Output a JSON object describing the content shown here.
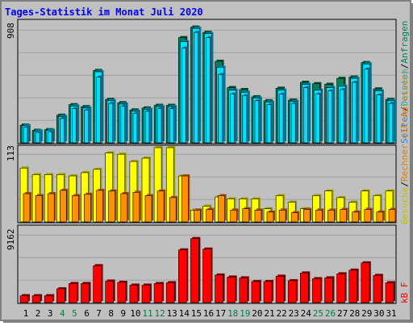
{
  "title": "Tages-Statistik im Monat Juli 2020",
  "colors": {
    "background": "#c0c0c0",
    "title": "#0000ff",
    "anfragen": "#00805a",
    "dateien": "#00e0ff",
    "seiten": "#3a7fd0",
    "besuche": "#ffff00",
    "rechner": "#ff9000",
    "kb": "#ff0000",
    "weekend_label": "#008040",
    "weekday_label": "#000000"
  },
  "legend_top": {
    "anfragen": "Anfragen",
    "sep1": "/",
    "dateien": "Dateien",
    "sep2": "/",
    "seiten": "Seiten"
  },
  "legend_mid": {
    "rechner": "Rechner (IP-Adressen)",
    "sep": "/",
    "besuche": "Besuche"
  },
  "legend_bottom": {
    "kb": "kB F"
  },
  "chart_data": [
    {
      "type": "bar",
      "panel": "top",
      "ymax_label": "908",
      "ylim": [
        0,
        908
      ],
      "categories": [
        "1",
        "2",
        "3",
        "4",
        "5",
        "6",
        "7",
        "8",
        "9",
        "10",
        "11",
        "12",
        "13",
        "14",
        "15",
        "16",
        "17",
        "18",
        "19",
        "20",
        "21",
        "22",
        "23",
        "24",
        "25",
        "26",
        "27",
        "28",
        "29",
        "30",
        "31"
      ],
      "series": [
        {
          "name": "Anfragen",
          "values": [
            135,
            95,
            100,
            210,
            290,
            275,
            550,
            330,
            305,
            250,
            265,
            285,
            285,
            800,
            880,
            840,
            620,
            420,
            405,
            350,
            320,
            415,
            325,
            460,
            450,
            445,
            490,
            500,
            610,
            410,
            330
          ]
        },
        {
          "name": "Dateien",
          "values": [
            130,
            90,
            95,
            200,
            280,
            265,
            540,
            320,
            295,
            240,
            255,
            275,
            275,
            770,
            870,
            830,
            575,
            400,
            385,
            340,
            310,
            400,
            315,
            445,
            400,
            420,
            430,
            490,
            600,
            395,
            320
          ]
        },
        {
          "name": "Seiten",
          "values": [
            120,
            80,
            85,
            185,
            260,
            250,
            500,
            300,
            280,
            225,
            240,
            260,
            260,
            720,
            840,
            800,
            520,
            370,
            360,
            320,
            290,
            370,
            300,
            420,
            370,
            395,
            405,
            460,
            560,
            365,
            300
          ]
        }
      ]
    },
    {
      "type": "bar",
      "panel": "middle",
      "ymax_label": "113",
      "ylim": [
        0,
        113
      ],
      "categories": [
        "1",
        "2",
        "3",
        "4",
        "5",
        "6",
        "7",
        "8",
        "9",
        "10",
        "11",
        "12",
        "13",
        "14",
        "15",
        "16",
        "17",
        "18",
        "19",
        "20",
        "21",
        "22",
        "23",
        "24",
        "25",
        "26",
        "27",
        "28",
        "29",
        "30",
        "31"
      ],
      "series": [
        {
          "name": "Besuche",
          "values": [
            82,
            72,
            72,
            72,
            70,
            75,
            80,
            105,
            103,
            92,
            97,
            113,
            113,
            70,
            18,
            24,
            38,
            35,
            35,
            35,
            20,
            40,
            30,
            20,
            40,
            47,
            37,
            30,
            47,
            40,
            47
          ]
        },
        {
          "name": "Rechner",
          "values": [
            43,
            40,
            43,
            48,
            40,
            42,
            48,
            47,
            43,
            45,
            40,
            47,
            37,
            70,
            18,
            19,
            40,
            18,
            20,
            18,
            15,
            18,
            14,
            19,
            18,
            18,
            19,
            15,
            19,
            15,
            19
          ]
        }
      ]
    },
    {
      "type": "bar",
      "panel": "bottom",
      "ymax_label": "9162",
      "ylim": [
        0,
        9162
      ],
      "categories": [
        "1",
        "2",
        "3",
        "4",
        "5",
        "6",
        "7",
        "8",
        "9",
        "10",
        "11",
        "12",
        "13",
        "14",
        "15",
        "16",
        "17",
        "18",
        "19",
        "20",
        "21",
        "22",
        "23",
        "24",
        "25",
        "26",
        "27",
        "28",
        "29",
        "30",
        "31"
      ],
      "series": [
        {
          "name": "kB F",
          "values": [
            850,
            850,
            850,
            1700,
            2350,
            2350,
            4550,
            2650,
            2500,
            2150,
            2150,
            2350,
            2450,
            6500,
            7900,
            6600,
            3400,
            3150,
            3050,
            2600,
            2600,
            3250,
            2700,
            3650,
            2950,
            3050,
            3550,
            4000,
            4900,
            3350,
            2450
          ]
        }
      ]
    }
  ]
}
